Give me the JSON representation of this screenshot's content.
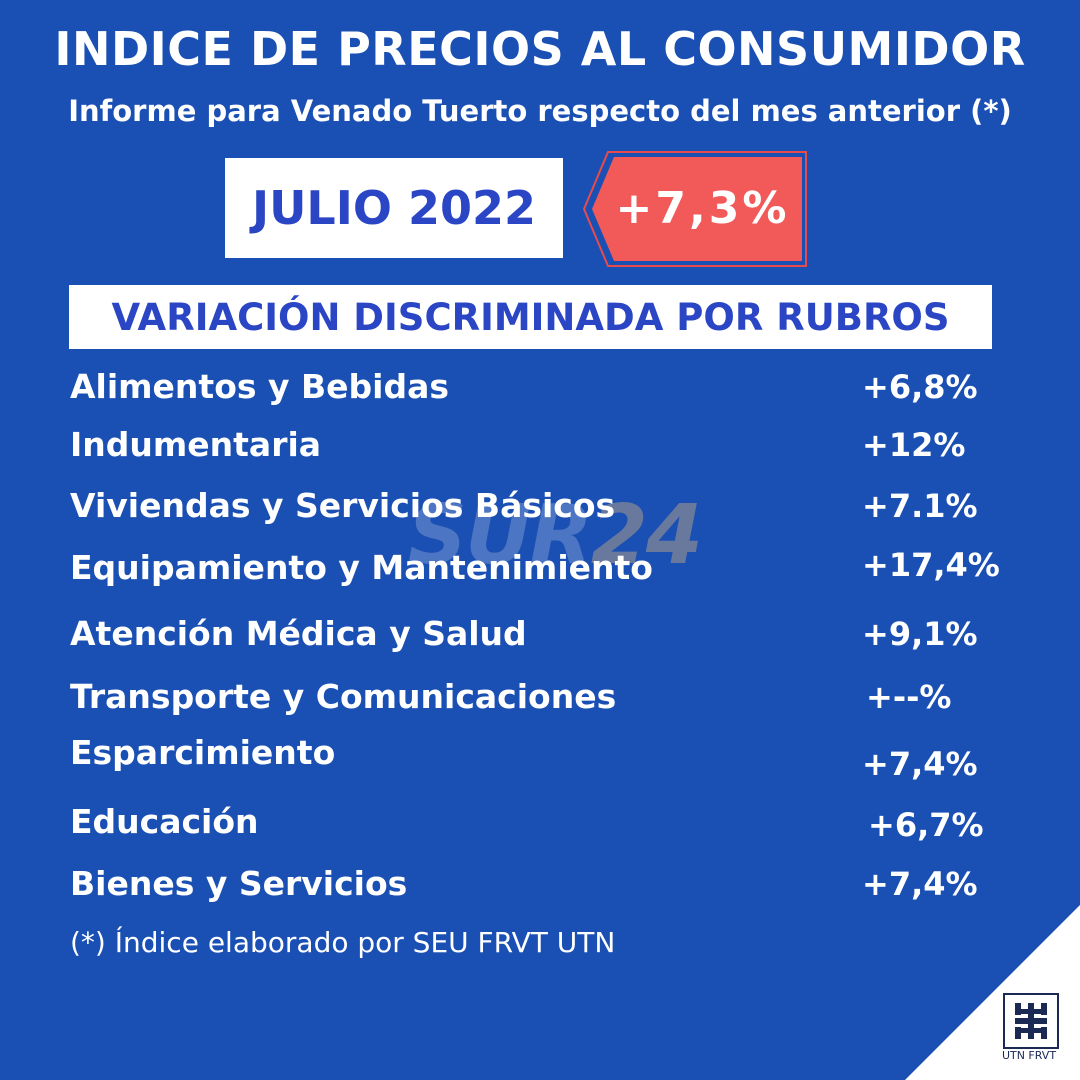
{
  "title": "INDICE DE PRECIOS AL CONSUMIDOR",
  "subtitle": "Informe para Venado Tuerto respecto del mes anterior (*)",
  "month": "JULIO 2022",
  "total_rate": "+7,3%",
  "section_title": "VARIACIÓN DISCRIMINADA POR RUBROS",
  "rubros": [
    {
      "name": "Alimentos y Bebidas",
      "value": "+6,8%"
    },
    {
      "name": "Indumentaria",
      "value": "+12%"
    },
    {
      "name": "Viviendas y Servicios Básicos",
      "value": "+7.1%"
    },
    {
      "name": "Equipamiento y Mantenimiento",
      "value": "+17,4%"
    },
    {
      "name": "Atención Médica y Salud",
      "value": "+9,1%"
    },
    {
      "name": "Transporte y Comunicaciones",
      "value": "+--%"
    },
    {
      "name": "Esparcimiento",
      "value": "+7,4%"
    },
    {
      "name": "Educación",
      "value": "+6,7%"
    },
    {
      "name": "Bienes y Servicios",
      "value": "+7,4%"
    }
  ],
  "footnote": "(*) Índice elaborado por SEU FRVT UTN",
  "watermark": {
    "text": "SUR",
    "number": "24"
  },
  "logo": {
    "caption": "UTN FRVT",
    "icon": "utn-logo-icon"
  },
  "colors": {
    "background": "#1a4fb3",
    "accent_red": "#f25a5a",
    "label_blue": "#2a46c4"
  }
}
